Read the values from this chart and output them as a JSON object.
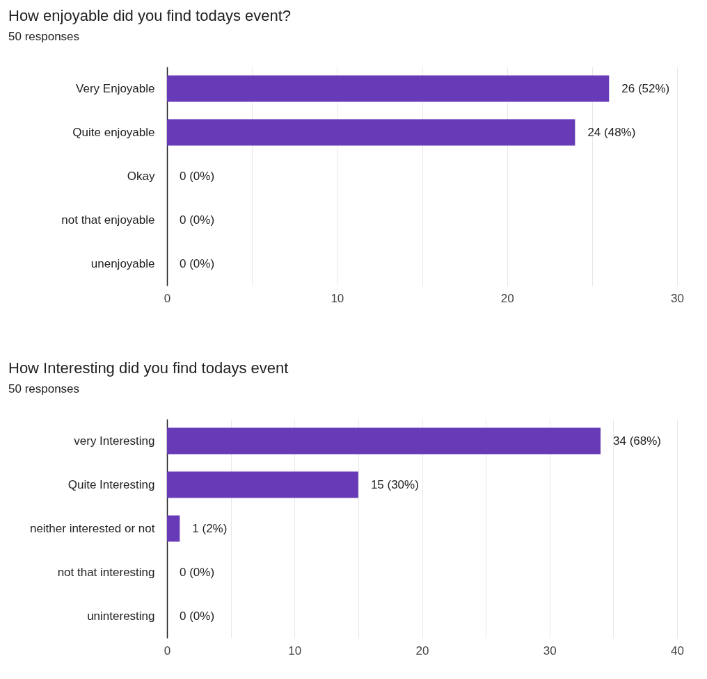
{
  "chart_data": [
    {
      "type": "bar",
      "orientation": "horizontal",
      "title": "How enjoyable did you find todays event?",
      "subtitle": "50 responses",
      "categories": [
        "Very Enjoyable",
        "Quite enjoyable",
        "Okay",
        "not that enjoyable",
        "unenjoyable"
      ],
      "values": [
        26,
        24,
        0,
        0,
        0
      ],
      "value_labels": [
        "26 (52%)",
        "24 (48%)",
        "0 (0%)",
        "0 (0%)",
        "0 (0%)"
      ],
      "color": "#673ab7",
      "xlim": [
        0,
        30
      ],
      "xticks": [
        0,
        {
          "value": 5,
          "label": null
        },
        10,
        {
          "value": 15,
          "label": null
        },
        20,
        {
          "value": 25,
          "label": null
        },
        30
      ],
      "grid": "x"
    },
    {
      "type": "bar",
      "orientation": "horizontal",
      "title": "How Interesting did you find todays event",
      "subtitle": "50 responses",
      "categories": [
        "very Interesting",
        "Quite Interesting",
        "neither interested or not",
        "not that interesting",
        "uninteresting"
      ],
      "values": [
        34,
        15,
        1,
        0,
        0
      ],
      "value_labels": [
        "34 (68%)",
        "15 (30%)",
        "1 (2%)",
        "0 (0%)",
        "0 (0%)"
      ],
      "color": "#673ab7",
      "xlim": [
        0,
        40
      ],
      "xticks": [
        0,
        {
          "value": 5,
          "label": null
        },
        10,
        {
          "value": 15,
          "label": null
        },
        20,
        {
          "value": 25,
          "label": null
        },
        30,
        {
          "value": 35,
          "label": null
        },
        40
      ],
      "grid": "x"
    }
  ]
}
